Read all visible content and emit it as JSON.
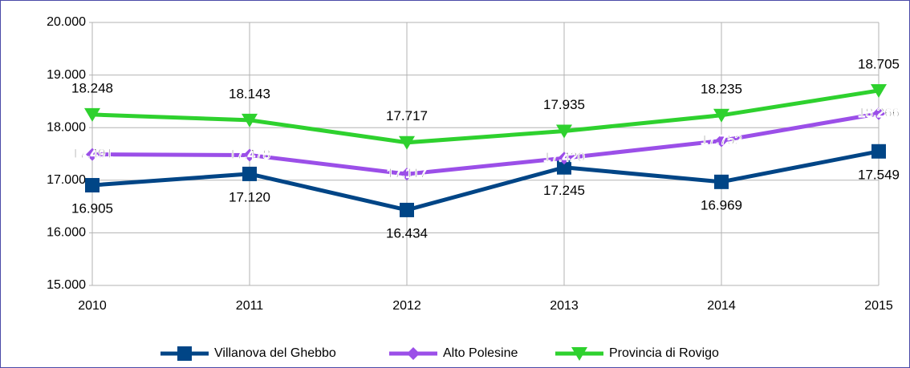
{
  "chart_data": {
    "type": "line",
    "categories": [
      "2010",
      "2011",
      "2012",
      "2013",
      "2014",
      "2015"
    ],
    "series": [
      {
        "name": "Villanova del Ghebbo",
        "color": "#004586",
        "marker": "square",
        "label_color": "#1a1a8c",
        "label_position": "below",
        "values": [
          16905,
          17120,
          16434,
          17245,
          16969,
          17549
        ],
        "value_labels": [
          "16.905",
          "17.120",
          "16.434",
          "17.245",
          "16.969",
          "17.549"
        ]
      },
      {
        "name": "Alto Polesine",
        "color": "#9b4fe8",
        "marker": "diamond",
        "label_color": "#7a5ab0",
        "label_position": "center",
        "values": [
          17491,
          17478,
          17117,
          17420,
          17752,
          18266
        ],
        "value_labels": [
          "17.491",
          "17.478",
          "17.117",
          "17.420",
          "17.752",
          "18.266"
        ]
      },
      {
        "name": "Provincia di Rovigo",
        "color": "#2ed12e",
        "marker": "triangle-down",
        "label_color": "#1e4d3a",
        "label_position": "above",
        "values": [
          18248,
          18143,
          17717,
          17935,
          18235,
          18705
        ],
        "value_labels": [
          "18.248",
          "18.143",
          "17.717",
          "17.935",
          "18.235",
          "18.705"
        ]
      }
    ],
    "ylim": [
      15000,
      20000
    ],
    "yticks": [
      {
        "value": 15000,
        "label": "15.000"
      },
      {
        "value": 16000,
        "label": "16.000"
      },
      {
        "value": 17000,
        "label": "17.000"
      },
      {
        "value": 18000,
        "label": "18.000"
      },
      {
        "value": 19000,
        "label": "19.000"
      },
      {
        "value": 20000,
        "label": "20.000"
      }
    ],
    "grid": true,
    "legend": "bottom"
  }
}
